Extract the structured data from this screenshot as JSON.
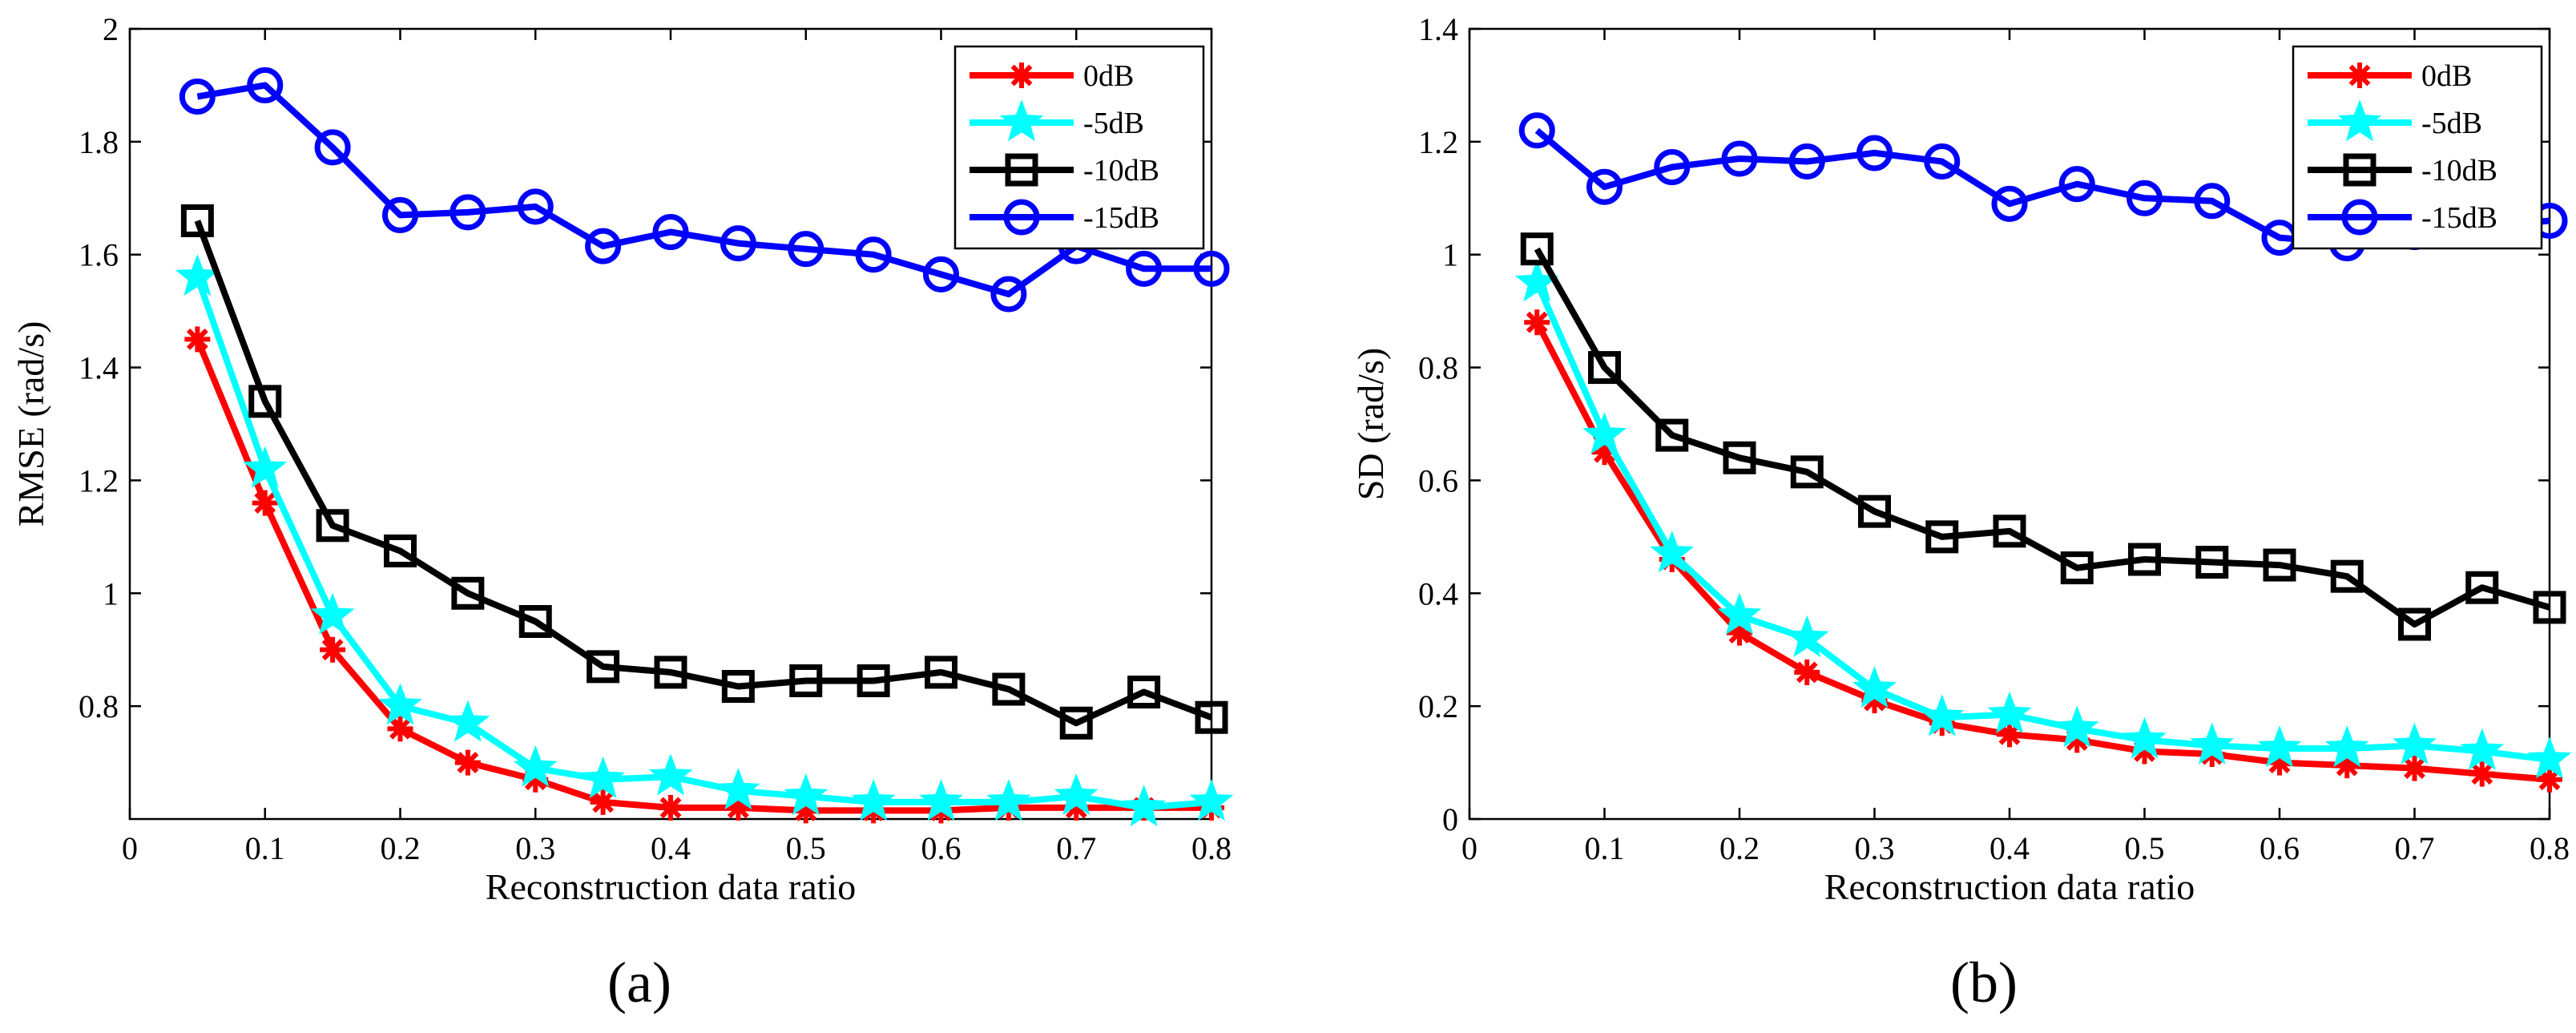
{
  "chart_data": [
    {
      "type": "line",
      "panel_label": "(a)",
      "xlabel": "Reconstruction data ratio",
      "ylabel": "RMSE (rad/s)",
      "xlim": [
        0,
        0.8
      ],
      "ylim": [
        0.6,
        2.0
      ],
      "xticks": [
        0,
        0.1,
        0.2,
        0.3,
        0.4,
        0.5,
        0.6,
        0.7,
        0.8
      ],
      "xtick_labels": [
        "0",
        "0.1",
        "0.2",
        "0.3",
        "0.4",
        "0.5",
        "0.6",
        "0.7",
        "0.8"
      ],
      "yticks": [
        0.8,
        1.0,
        1.2,
        1.4,
        1.6,
        1.8,
        2.0
      ],
      "ytick_labels": [
        "0.8",
        "1",
        "1.2",
        "1.4",
        "1.6",
        "1.8",
        "2"
      ],
      "grid": false,
      "legend_position": "top-right",
      "x": [
        0.05,
        0.1,
        0.15,
        0.2,
        0.25,
        0.3,
        0.35,
        0.4,
        0.45,
        0.5,
        0.55,
        0.6,
        0.65,
        0.7,
        0.75,
        0.8
      ],
      "series": [
        {
          "name": "0dB",
          "color": "#ff0000",
          "marker": "asterisk",
          "values": [
            1.45,
            1.16,
            0.9,
            0.76,
            0.7,
            0.67,
            0.63,
            0.62,
            0.62,
            0.615,
            0.615,
            0.615,
            0.62,
            0.62,
            0.62,
            0.62
          ]
        },
        {
          "name": "-5dB",
          "color": "#00ffff",
          "marker": "star",
          "values": [
            1.56,
            1.22,
            0.96,
            0.8,
            0.77,
            0.69,
            0.67,
            0.675,
            0.65,
            0.64,
            0.63,
            0.63,
            0.63,
            0.64,
            0.62,
            0.63
          ]
        },
        {
          "name": "-10dB",
          "color": "#000000",
          "marker": "square",
          "values": [
            1.66,
            1.34,
            1.12,
            1.075,
            1.0,
            0.95,
            0.87,
            0.86,
            0.835,
            0.845,
            0.845,
            0.86,
            0.83,
            0.77,
            0.825,
            0.78
          ]
        },
        {
          "name": "-15dB",
          "color": "#0000ff",
          "marker": "circle",
          "values": [
            1.88,
            1.9,
            1.79,
            1.67,
            1.675,
            1.685,
            1.615,
            1.64,
            1.62,
            1.61,
            1.6,
            1.565,
            1.53,
            1.615,
            1.575,
            1.575
          ]
        }
      ]
    },
    {
      "type": "line",
      "panel_label": "(b)",
      "xlabel": "Reconstruction data ratio",
      "ylabel": "SD (rad/s)",
      "xlim": [
        0,
        0.8
      ],
      "ylim": [
        0,
        1.4
      ],
      "xticks": [
        0,
        0.1,
        0.2,
        0.3,
        0.4,
        0.5,
        0.6,
        0.7,
        0.8
      ],
      "xtick_labels": [
        "0",
        "0.1",
        "0.2",
        "0.3",
        "0.4",
        "0.5",
        "0.6",
        "0.7",
        "0.8"
      ],
      "yticks": [
        0,
        0.2,
        0.4,
        0.6,
        0.8,
        1.0,
        1.2,
        1.4
      ],
      "ytick_labels": [
        "0",
        "0.2",
        "0.4",
        "0.6",
        "0.8",
        "1",
        "1.2",
        "1.4"
      ],
      "grid": false,
      "legend_position": "top-right",
      "x": [
        0.05,
        0.1,
        0.15,
        0.2,
        0.25,
        0.3,
        0.35,
        0.4,
        0.45,
        0.5,
        0.55,
        0.6,
        0.65,
        0.7,
        0.75,
        0.8
      ],
      "series": [
        {
          "name": "0dB",
          "color": "#ff0000",
          "marker": "asterisk",
          "values": [
            0.88,
            0.65,
            0.46,
            0.33,
            0.26,
            0.21,
            0.17,
            0.15,
            0.14,
            0.12,
            0.115,
            0.1,
            0.095,
            0.09,
            0.08,
            0.07
          ]
        },
        {
          "name": "-5dB",
          "color": "#00ffff",
          "marker": "star",
          "values": [
            0.95,
            0.68,
            0.47,
            0.36,
            0.32,
            0.23,
            0.18,
            0.185,
            0.16,
            0.14,
            0.13,
            0.125,
            0.125,
            0.13,
            0.12,
            0.105
          ]
        },
        {
          "name": "-10dB",
          "color": "#000000",
          "marker": "square",
          "values": [
            1.01,
            0.8,
            0.68,
            0.64,
            0.615,
            0.545,
            0.5,
            0.51,
            0.445,
            0.46,
            0.455,
            0.45,
            0.43,
            0.345,
            0.41,
            0.375
          ]
        },
        {
          "name": "-15dB",
          "color": "#0000ff",
          "marker": "circle",
          "values": [
            1.22,
            1.12,
            1.155,
            1.17,
            1.165,
            1.18,
            1.165,
            1.09,
            1.125,
            1.1,
            1.095,
            1.03,
            1.02,
            1.04,
            1.05,
            1.06
          ]
        }
      ]
    }
  ]
}
